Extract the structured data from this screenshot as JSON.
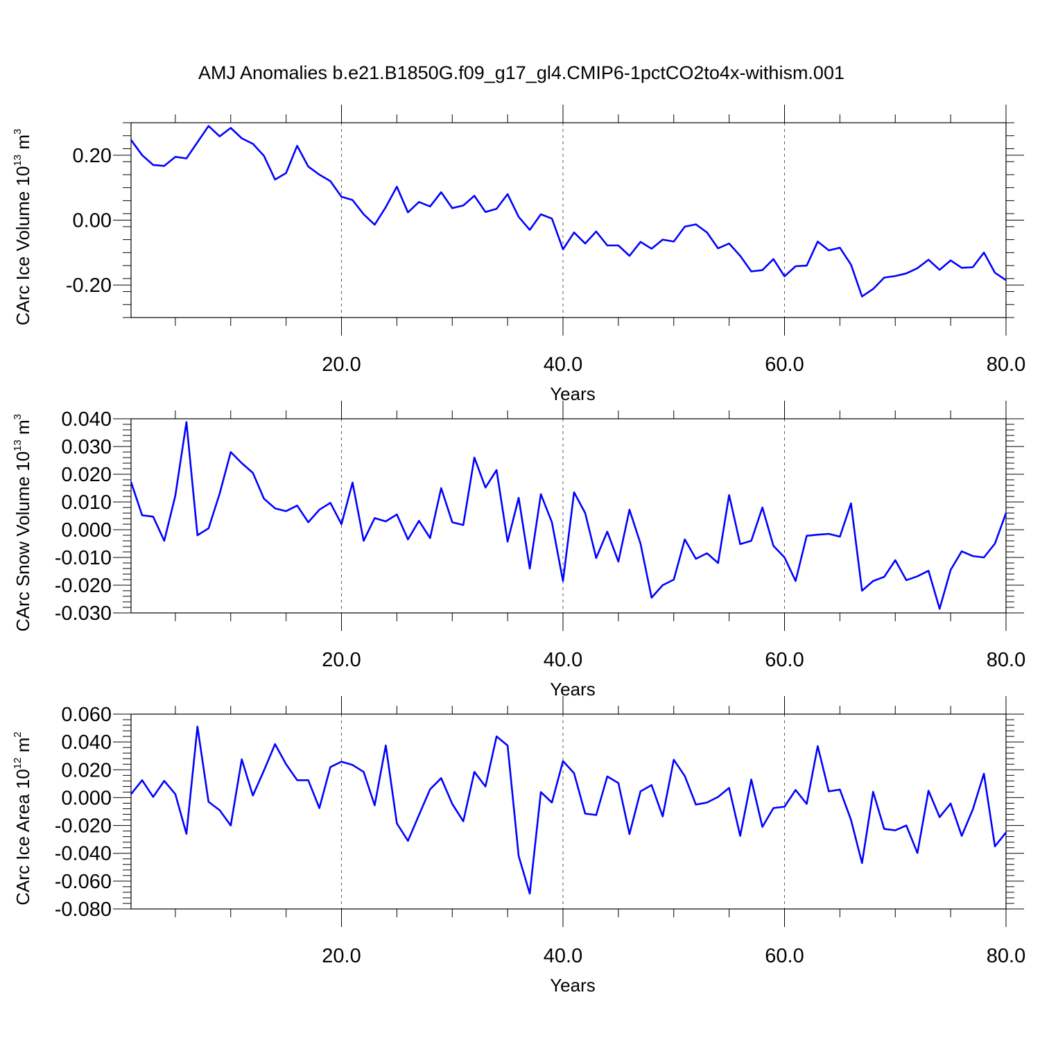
{
  "title": "AMJ Anomalies b.e21.B1850G.f09_g17_gl4.CMIP6-1pctCO2to4x-withism.001",
  "colors": {
    "line": "#0000ff",
    "axis": "#000000",
    "grid": "#555555"
  },
  "chart_data": [
    {
      "type": "line",
      "name": "CArc Ice Volume",
      "xlabel": "Years",
      "ylabel_main": "CArc Ice Volume 10",
      "ylabel_exp": "13",
      "ylabel_unit": " m",
      "ylabel_unit_exp": "3",
      "xlim": [
        1,
        80
      ],
      "ylim": [
        -0.3,
        0.3
      ],
      "xticks": [
        20,
        40,
        60,
        80
      ],
      "xtick_labels": [
        "20.0",
        "40.0",
        "60.0",
        "80.0"
      ],
      "yticks": [
        0.2,
        0.0,
        -0.2
      ],
      "ytick_labels": [
        "0.20",
        "0.00",
        "-0.20"
      ],
      "ygrid": false,
      "xgrid_dashed": true,
      "x": [
        1,
        2,
        3,
        4,
        5,
        6,
        7,
        8,
        9,
        10,
        11,
        12,
        13,
        14,
        15,
        16,
        17,
        18,
        19,
        20,
        21,
        22,
        23,
        24,
        25,
        26,
        27,
        28,
        29,
        30,
        31,
        32,
        33,
        34,
        35,
        36,
        37,
        38,
        39,
        40,
        41,
        42,
        43,
        44,
        45,
        46,
        47,
        48,
        49,
        50,
        51,
        52,
        53,
        54,
        55,
        56,
        57,
        58,
        59,
        60,
        61,
        62,
        63,
        64,
        65,
        66,
        67,
        68,
        69,
        70,
        71,
        72,
        73,
        74,
        75,
        76,
        77,
        78,
        79,
        80
      ],
      "values": [
        0.247,
        0.2,
        0.17,
        0.167,
        0.195,
        0.19,
        0.24,
        0.29,
        0.258,
        0.284,
        0.252,
        0.235,
        0.198,
        0.125,
        0.145,
        0.229,
        0.165,
        0.14,
        0.12,
        0.072,
        0.062,
        0.018,
        -0.014,
        0.04,
        0.103,
        0.024,
        0.056,
        0.042,
        0.086,
        0.037,
        0.045,
        0.075,
        0.025,
        0.035,
        0.08,
        0.01,
        -0.03,
        0.018,
        0.005,
        -0.09,
        -0.038,
        -0.072,
        -0.035,
        -0.078,
        -0.078,
        -0.11,
        -0.067,
        -0.088,
        -0.06,
        -0.066,
        -0.02,
        -0.013,
        -0.038,
        -0.087,
        -0.072,
        -0.11,
        -0.158,
        -0.154,
        -0.12,
        -0.173,
        -0.142,
        -0.14,
        -0.066,
        -0.093,
        -0.085,
        -0.137,
        -0.235,
        -0.212,
        -0.177,
        -0.172,
        -0.164,
        -0.148,
        -0.122,
        -0.153,
        -0.124,
        -0.147,
        -0.145,
        -0.1,
        -0.162,
        -0.185
      ]
    },
    {
      "type": "line",
      "name": "CArc Snow Volume",
      "xlabel": "Years",
      "ylabel_main": "CArc Snow Volume 10",
      "ylabel_exp": "13",
      "ylabel_unit": " m",
      "ylabel_unit_exp": "3",
      "xlim": [
        1,
        80
      ],
      "ylim": [
        -0.03,
        0.04
      ],
      "xticks": [
        20,
        40,
        60,
        80
      ],
      "xtick_labels": [
        "20.0",
        "40.0",
        "60.0",
        "80.0"
      ],
      "yticks": [
        0.04,
        0.03,
        0.02,
        0.01,
        0.0,
        -0.01,
        -0.02,
        -0.03
      ],
      "ytick_labels": [
        "0.040",
        "0.030",
        "0.020",
        "0.010",
        "0.000",
        "-0.010",
        "-0.020",
        "-0.030"
      ],
      "ygrid": false,
      "xgrid_dashed": true,
      "x": [
        1,
        2,
        3,
        4,
        5,
        6,
        7,
        8,
        9,
        10,
        11,
        12,
        13,
        14,
        15,
        16,
        17,
        18,
        19,
        20,
        21,
        22,
        23,
        24,
        25,
        26,
        27,
        28,
        29,
        30,
        31,
        32,
        33,
        34,
        35,
        36,
        37,
        38,
        39,
        40,
        41,
        42,
        43,
        44,
        45,
        46,
        47,
        48,
        49,
        50,
        51,
        52,
        53,
        54,
        55,
        56,
        57,
        58,
        59,
        60,
        61,
        62,
        63,
        64,
        65,
        66,
        67,
        68,
        69,
        70,
        71,
        72,
        73,
        74,
        75,
        76,
        77,
        78,
        79,
        80
      ],
      "values": [
        0.0172,
        0.0052,
        0.0047,
        -0.004,
        0.0123,
        0.0388,
        -0.002,
        0.0005,
        0.013,
        0.028,
        0.024,
        0.0205,
        0.0112,
        0.0077,
        0.0067,
        0.0087,
        0.0027,
        0.0072,
        0.0097,
        0.002,
        0.017,
        -0.004,
        0.0042,
        0.003,
        0.0055,
        -0.0035,
        0.0032,
        -0.003,
        0.015,
        0.0027,
        0.0017,
        0.026,
        0.0152,
        0.0215,
        -0.0043,
        0.0115,
        -0.014,
        0.0128,
        0.0027,
        -0.0185,
        0.0135,
        0.006,
        -0.0102,
        -0.0007,
        -0.0115,
        0.0072,
        -0.005,
        -0.0245,
        -0.02,
        -0.018,
        -0.0035,
        -0.0105,
        -0.0085,
        -0.012,
        0.0125,
        -0.0052,
        -0.004,
        0.008,
        -0.0058,
        -0.01,
        -0.0185,
        -0.0022,
        -0.0018,
        -0.0015,
        -0.0025,
        0.0095,
        -0.022,
        -0.0185,
        -0.017,
        -0.011,
        -0.0182,
        -0.0168,
        -0.0148,
        -0.0285,
        -0.0145,
        -0.0078,
        -0.0095,
        -0.01,
        -0.005,
        0.006
      ]
    },
    {
      "type": "line",
      "name": "CArc Ice Area",
      "xlabel": "Years",
      "ylabel_main": "CArc Ice Area 10",
      "ylabel_exp": "12",
      "ylabel_unit": " m",
      "ylabel_unit_exp": "2",
      "xlim": [
        1,
        80
      ],
      "ylim": [
        -0.08,
        0.06
      ],
      "xticks": [
        20,
        40,
        60,
        80
      ],
      "xtick_labels": [
        "20.0",
        "40.0",
        "60.0",
        "80.0"
      ],
      "yticks": [
        0.06,
        0.04,
        0.02,
        0.0,
        -0.02,
        -0.04,
        -0.06,
        -0.08
      ],
      "ytick_labels": [
        "0.060",
        "0.040",
        "0.020",
        "0.000",
        "-0.020",
        "-0.040",
        "-0.060",
        "-0.080"
      ],
      "ygrid": false,
      "xgrid_dashed": true,
      "x": [
        1,
        2,
        3,
        4,
        5,
        6,
        7,
        8,
        9,
        10,
        11,
        12,
        13,
        14,
        15,
        16,
        17,
        18,
        19,
        20,
        21,
        22,
        23,
        24,
        25,
        26,
        27,
        28,
        29,
        30,
        31,
        32,
        33,
        34,
        35,
        36,
        37,
        38,
        39,
        40,
        41,
        42,
        43,
        44,
        45,
        46,
        47,
        48,
        49,
        50,
        51,
        52,
        53,
        54,
        55,
        56,
        57,
        58,
        59,
        60,
        61,
        62,
        63,
        64,
        65,
        66,
        67,
        68,
        69,
        70,
        71,
        72,
        73,
        74,
        75,
        76,
        77,
        78,
        79,
        80
      ],
      "values": [
        0.0025,
        0.0125,
        0.0005,
        0.012,
        0.0025,
        -0.026,
        0.051,
        -0.003,
        -0.009,
        -0.02,
        0.0275,
        0.0015,
        0.0195,
        0.0385,
        0.024,
        0.0125,
        0.0125,
        -0.0075,
        0.022,
        0.0258,
        0.0235,
        0.0185,
        -0.0055,
        0.0375,
        -0.0185,
        -0.031,
        -0.0125,
        0.006,
        0.014,
        -0.0045,
        -0.017,
        0.0185,
        0.008,
        0.044,
        0.0375,
        -0.042,
        -0.069,
        0.004,
        -0.0035,
        0.0262,
        0.0175,
        -0.0115,
        -0.0125,
        0.0152,
        0.0105,
        -0.0262,
        0.0045,
        0.009,
        -0.0135,
        0.0272,
        0.0155,
        -0.005,
        -0.0035,
        0.0005,
        0.007,
        -0.0275,
        0.013,
        -0.021,
        -0.0075,
        -0.0065,
        0.0055,
        -0.0045,
        0.037,
        0.0045,
        0.0058,
        -0.016,
        -0.047,
        0.0042,
        -0.0225,
        -0.0235,
        -0.02,
        -0.0398,
        0.005,
        -0.014,
        -0.0042,
        -0.0275,
        -0.0085,
        0.0172,
        -0.035,
        -0.025
      ]
    }
  ]
}
